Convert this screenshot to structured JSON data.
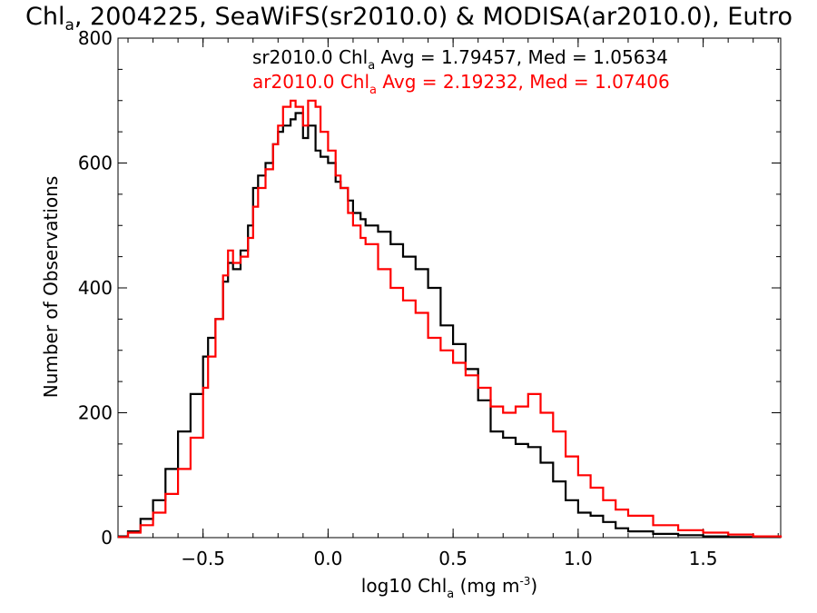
{
  "chart_data": {
    "type": "line",
    "title": {
      "prefix": "Chl",
      "sub": "a",
      "rest": ", 2004225, SeaWiFS(sr2010.0) & MODISA(ar2010.0), Eutro"
    },
    "xlabel": {
      "prefix": "log10 Chl",
      "sub": "a",
      "mid": " (mg m",
      "sup": "-3",
      "suffix": ")"
    },
    "ylabel": "Number of Observations",
    "xlim": [
      -0.84,
      1.81
    ],
    "ylim": [
      0,
      800
    ],
    "x_ticks": [
      {
        "value": -0.5,
        "label": "−0.5"
      },
      {
        "value": 0.0,
        "label": "0.0"
      },
      {
        "value": 0.5,
        "label": "0.5"
      },
      {
        "value": 1.0,
        "label": "1.0"
      },
      {
        "value": 1.5,
        "label": "1.5"
      }
    ],
    "y_ticks": [
      {
        "value": 0,
        "label": "0"
      },
      {
        "value": 200,
        "label": "200"
      },
      {
        "value": 400,
        "label": "400"
      },
      {
        "value": 600,
        "label": "600"
      },
      {
        "value": 800,
        "label": "800"
      }
    ],
    "grid": false,
    "legend_position": "top-right",
    "series": [
      {
        "name": "sr2010.0",
        "color": "#000000",
        "legend": {
          "prefix": "sr2010.0 Chl",
          "sub": "a",
          "rest": " Avg = 1.79457, Med = 1.05634"
        },
        "x": [
          -0.84,
          -0.8,
          -0.75,
          -0.7,
          -0.65,
          -0.6,
          -0.55,
          -0.5,
          -0.48,
          -0.45,
          -0.42,
          -0.4,
          -0.38,
          -0.35,
          -0.32,
          -0.3,
          -0.28,
          -0.25,
          -0.22,
          -0.2,
          -0.18,
          -0.15,
          -0.13,
          -0.1,
          -0.08,
          -0.05,
          -0.03,
          0.0,
          0.03,
          0.05,
          0.08,
          0.1,
          0.13,
          0.15,
          0.2,
          0.25,
          0.3,
          0.35,
          0.4,
          0.45,
          0.5,
          0.55,
          0.6,
          0.65,
          0.7,
          0.75,
          0.8,
          0.85,
          0.9,
          0.95,
          1.0,
          1.05,
          1.1,
          1.15,
          1.2,
          1.3,
          1.4,
          1.5,
          1.6,
          1.7,
          1.81
        ],
        "y": [
          2,
          10,
          30,
          60,
          110,
          170,
          230,
          290,
          320,
          350,
          410,
          440,
          430,
          460,
          500,
          560,
          580,
          600,
          630,
          650,
          660,
          670,
          680,
          640,
          660,
          620,
          610,
          600,
          570,
          560,
          540,
          520,
          510,
          500,
          490,
          470,
          450,
          430,
          400,
          340,
          310,
          270,
          220,
          170,
          160,
          150,
          145,
          120,
          90,
          60,
          40,
          35,
          25,
          15,
          10,
          6,
          4,
          2,
          1,
          1,
          0
        ]
      },
      {
        "name": "ar2010.0",
        "color": "#ff0000",
        "legend": {
          "prefix": "ar2010.0 Chl",
          "sub": "a",
          "rest": " Avg = 2.19232, Med = 1.07406"
        },
        "x": [
          -0.84,
          -0.8,
          -0.75,
          -0.7,
          -0.65,
          -0.6,
          -0.55,
          -0.5,
          -0.48,
          -0.45,
          -0.42,
          -0.4,
          -0.38,
          -0.35,
          -0.32,
          -0.3,
          -0.28,
          -0.25,
          -0.22,
          -0.2,
          -0.18,
          -0.15,
          -0.13,
          -0.1,
          -0.08,
          -0.05,
          -0.03,
          0.0,
          0.03,
          0.05,
          0.08,
          0.1,
          0.13,
          0.15,
          0.2,
          0.25,
          0.3,
          0.35,
          0.4,
          0.45,
          0.5,
          0.55,
          0.6,
          0.65,
          0.7,
          0.75,
          0.8,
          0.85,
          0.9,
          0.95,
          1.0,
          1.05,
          1.1,
          1.15,
          1.2,
          1.3,
          1.4,
          1.5,
          1.6,
          1.7,
          1.81
        ],
        "y": [
          1,
          8,
          20,
          40,
          70,
          110,
          160,
          240,
          290,
          350,
          420,
          460,
          440,
          450,
          480,
          530,
          560,
          590,
          630,
          660,
          690,
          700,
          690,
          660,
          700,
          690,
          650,
          620,
          580,
          560,
          520,
          500,
          480,
          470,
          430,
          400,
          380,
          360,
          320,
          300,
          280,
          260,
          240,
          210,
          200,
          210,
          230,
          200,
          170,
          130,
          100,
          80,
          60,
          45,
          35,
          20,
          12,
          8,
          5,
          2,
          0
        ]
      }
    ]
  }
}
